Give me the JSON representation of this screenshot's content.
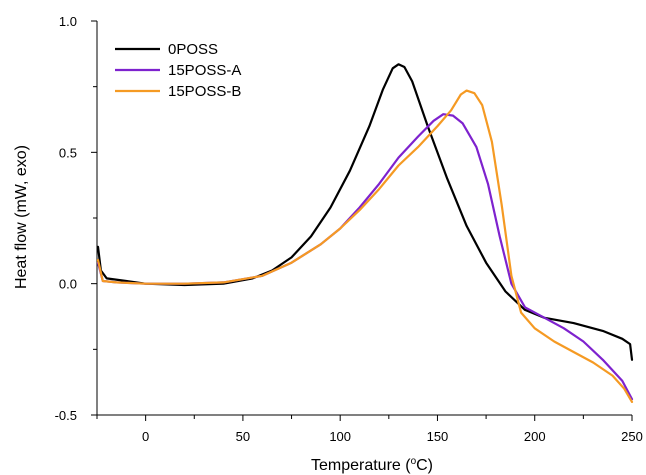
{
  "chart_data": {
    "type": "line",
    "xlabel": "Temperature (",
    "xlabel_sup": "o",
    "xlabel_unit": "C)",
    "ylabel": "Heat flow (mW, exo)",
    "xlim": [
      -25,
      250
    ],
    "ylim": [
      -0.5,
      1.0
    ],
    "x_ticks": [
      0,
      50,
      100,
      150,
      200,
      250
    ],
    "y_ticks": [
      1.0,
      0.5,
      0.0,
      -0.5
    ],
    "x_tick_labels": [
      "0",
      "50",
      "100",
      "150",
      "200",
      "250"
    ],
    "y_tick_labels": [
      "1.0",
      "0.5",
      "0.0",
      "-0.5"
    ],
    "grid": false,
    "legend_position": "top-left",
    "series": [
      {
        "name": "0POSS",
        "color": "#000000",
        "points": [
          [
            -24.5,
            0.14
          ],
          [
            -23,
            0.05
          ],
          [
            -20,
            0.02
          ],
          [
            -10,
            0.01
          ],
          [
            0,
            0.0
          ],
          [
            20,
            -0.005
          ],
          [
            40,
            0.0
          ],
          [
            55,
            0.02
          ],
          [
            65,
            0.05
          ],
          [
            75,
            0.1
          ],
          [
            85,
            0.18
          ],
          [
            95,
            0.29
          ],
          [
            105,
            0.43
          ],
          [
            115,
            0.6
          ],
          [
            122,
            0.74
          ],
          [
            127,
            0.82
          ],
          [
            130,
            0.835
          ],
          [
            133,
            0.825
          ],
          [
            137,
            0.77
          ],
          [
            145,
            0.6
          ],
          [
            155,
            0.4
          ],
          [
            165,
            0.22
          ],
          [
            175,
            0.08
          ],
          [
            185,
            -0.03
          ],
          [
            195,
            -0.1
          ],
          [
            205,
            -0.13
          ],
          [
            220,
            -0.15
          ],
          [
            235,
            -0.18
          ],
          [
            245,
            -0.21
          ],
          [
            249,
            -0.23
          ],
          [
            250,
            -0.29
          ]
        ]
      },
      {
        "name": "15POSS-A",
        "color": "#7e22ce",
        "points": [
          [
            -24.5,
            0.08
          ],
          [
            -22,
            0.01
          ],
          [
            -15,
            0.005
          ],
          [
            0,
            0.0
          ],
          [
            20,
            0.0
          ],
          [
            40,
            0.005
          ],
          [
            60,
            0.03
          ],
          [
            75,
            0.08
          ],
          [
            90,
            0.15
          ],
          [
            100,
            0.21
          ],
          [
            110,
            0.29
          ],
          [
            120,
            0.38
          ],
          [
            130,
            0.48
          ],
          [
            140,
            0.56
          ],
          [
            148,
            0.62
          ],
          [
            153,
            0.645
          ],
          [
            158,
            0.64
          ],
          [
            163,
            0.61
          ],
          [
            170,
            0.52
          ],
          [
            176,
            0.38
          ],
          [
            182,
            0.18
          ],
          [
            188,
            0.0
          ],
          [
            195,
            -0.09
          ],
          [
            205,
            -0.13
          ],
          [
            215,
            -0.17
          ],
          [
            225,
            -0.22
          ],
          [
            235,
            -0.29
          ],
          [
            245,
            -0.37
          ],
          [
            250,
            -0.44
          ]
        ]
      },
      {
        "name": "15POSS-B",
        "color": "#f59a23",
        "points": [
          [
            -24.5,
            0.09
          ],
          [
            -22,
            0.01
          ],
          [
            -15,
            0.005
          ],
          [
            0,
            0.0
          ],
          [
            20,
            0.0
          ],
          [
            40,
            0.005
          ],
          [
            60,
            0.03
          ],
          [
            75,
            0.08
          ],
          [
            90,
            0.15
          ],
          [
            100,
            0.21
          ],
          [
            110,
            0.28
          ],
          [
            120,
            0.36
          ],
          [
            130,
            0.45
          ],
          [
            140,
            0.52
          ],
          [
            150,
            0.6
          ],
          [
            157,
            0.66
          ],
          [
            162,
            0.72
          ],
          [
            165,
            0.735
          ],
          [
            169,
            0.725
          ],
          [
            173,
            0.68
          ],
          [
            178,
            0.54
          ],
          [
            183,
            0.3
          ],
          [
            188,
            0.03
          ],
          [
            193,
            -0.11
          ],
          [
            200,
            -0.17
          ],
          [
            210,
            -0.22
          ],
          [
            220,
            -0.26
          ],
          [
            230,
            -0.3
          ],
          [
            240,
            -0.35
          ],
          [
            246,
            -0.4
          ],
          [
            250,
            -0.45
          ]
        ]
      }
    ]
  }
}
